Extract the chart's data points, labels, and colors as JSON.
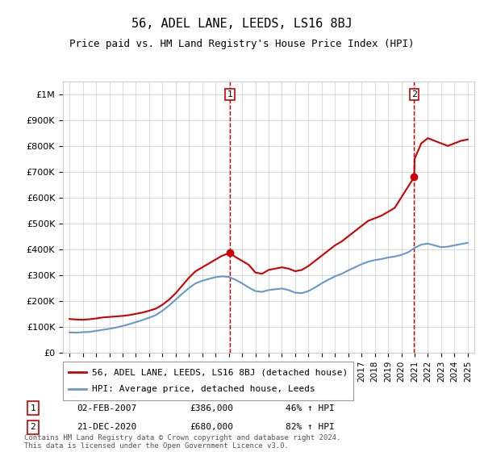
{
  "title": "56, ADEL LANE, LEEDS, LS16 8BJ",
  "subtitle": "Price paid vs. HM Land Registry's House Price Index (HPI)",
  "ylabel_ticks": [
    "£0",
    "£100K",
    "£200K",
    "£300K",
    "£400K",
    "£500K",
    "£600K",
    "£700K",
    "£800K",
    "£900K",
    "£1M"
  ],
  "ytick_values": [
    0,
    100000,
    200000,
    300000,
    400000,
    500000,
    600000,
    700000,
    800000,
    900000,
    1000000
  ],
  "xlim": [
    1994.5,
    2025.5
  ],
  "ylim": [
    0,
    1050000
  ],
  "red_line_color": "#cc0000",
  "blue_line_color": "#6699cc",
  "vline_color": "#cc0000",
  "legend_label_red": "56, ADEL LANE, LEEDS, LS16 8BJ (detached house)",
  "legend_label_blue": "HPI: Average price, detached house, Leeds",
  "annotation1_date": "02-FEB-2007",
  "annotation1_price": "£386,000",
  "annotation1_pct": "46% ↑ HPI",
  "annotation2_date": "21-DEC-2020",
  "annotation2_price": "£680,000",
  "annotation2_pct": "82% ↑ HPI",
  "vline1_x": 2007.08,
  "vline2_x": 2020.97,
  "footer": "Contains HM Land Registry data © Crown copyright and database right 2024.\nThis data is licensed under the Open Government Licence v3.0.",
  "red_x": [
    1995,
    1995.5,
    1996,
    1996.5,
    1997,
    1997.5,
    1998,
    1998.5,
    1999,
    1999.5,
    2000,
    2000.5,
    2001,
    2001.5,
    2002,
    2002.5,
    2003,
    2003.5,
    2004,
    2004.5,
    2005,
    2005.5,
    2006,
    2006.5,
    2007.08,
    2007.5,
    2008,
    2008.5,
    2009,
    2009.5,
    2010,
    2010.5,
    2011,
    2011.5,
    2012,
    2012.5,
    2013,
    2013.5,
    2014,
    2014.5,
    2015,
    2015.5,
    2016,
    2016.5,
    2017,
    2017.5,
    2018,
    2018.5,
    2019,
    2019.5,
    2020.97,
    2021,
    2021.5,
    2022,
    2022.5,
    2023,
    2023.5,
    2024,
    2024.5,
    2025
  ],
  "red_y": [
    130000,
    128000,
    127000,
    129000,
    132000,
    136000,
    138000,
    140000,
    142000,
    145000,
    150000,
    155000,
    162000,
    170000,
    185000,
    205000,
    230000,
    260000,
    290000,
    315000,
    330000,
    345000,
    360000,
    375000,
    386000,
    370000,
    355000,
    340000,
    310000,
    305000,
    320000,
    325000,
    330000,
    325000,
    315000,
    320000,
    335000,
    355000,
    375000,
    395000,
    415000,
    430000,
    450000,
    470000,
    490000,
    510000,
    520000,
    530000,
    545000,
    560000,
    680000,
    750000,
    810000,
    830000,
    820000,
    810000,
    800000,
    810000,
    820000,
    825000
  ],
  "blue_x": [
    1995,
    1995.5,
    1996,
    1996.5,
    1997,
    1997.5,
    1998,
    1998.5,
    1999,
    1999.5,
    2000,
    2000.5,
    2001,
    2001.5,
    2002,
    2002.5,
    2003,
    2003.5,
    2004,
    2004.5,
    2005,
    2005.5,
    2006,
    2006.5,
    2007,
    2007.5,
    2008,
    2008.5,
    2009,
    2009.5,
    2010,
    2010.5,
    2011,
    2011.5,
    2012,
    2012.5,
    2013,
    2013.5,
    2014,
    2014.5,
    2015,
    2015.5,
    2016,
    2016.5,
    2017,
    2017.5,
    2018,
    2018.5,
    2019,
    2019.5,
    2020,
    2020.5,
    2021,
    2021.5,
    2022,
    2022.5,
    2023,
    2023.5,
    2024,
    2024.5,
    2025
  ],
  "blue_y": [
    78000,
    77000,
    79000,
    80000,
    84000,
    88000,
    92000,
    97000,
    103000,
    110000,
    118000,
    126000,
    135000,
    145000,
    162000,
    182000,
    205000,
    228000,
    250000,
    268000,
    278000,
    285000,
    292000,
    295000,
    293000,
    282000,
    268000,
    252000,
    238000,
    235000,
    242000,
    245000,
    248000,
    242000,
    232000,
    230000,
    238000,
    252000,
    268000,
    282000,
    295000,
    305000,
    318000,
    330000,
    342000,
    352000,
    358000,
    362000,
    368000,
    372000,
    378000,
    388000,
    405000,
    418000,
    422000,
    415000,
    408000,
    410000,
    415000,
    420000,
    425000
  ]
}
